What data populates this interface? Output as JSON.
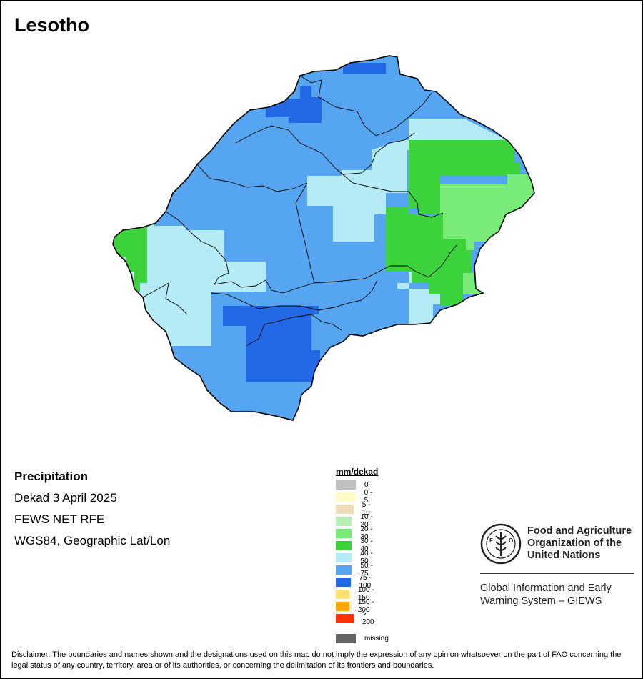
{
  "title": "Lesotho",
  "info": {
    "variable": "Precipitation",
    "period": "Dekad 3 April 2025",
    "source": "FEWS NET RFE",
    "projection": "WGS84, Geographic Lat/Lon"
  },
  "legend": {
    "title": "mm/dekad",
    "items": [
      {
        "label": "0",
        "color": "#c0c0c0"
      },
      {
        "label": "0 - 5",
        "color": "#fffcc8"
      },
      {
        "label": "5 - 10",
        "color": "#f0dcb9"
      },
      {
        "label": "10 - 20",
        "color": "#b4f0b4"
      },
      {
        "label": "20 - 30",
        "color": "#78eb78"
      },
      {
        "label": "30 - 40",
        "color": "#3cd23c"
      },
      {
        "label": "40 - 50",
        "color": "#b4ebf5"
      },
      {
        "label": "50 - 75",
        "color": "#55a5f0"
      },
      {
        "label": "75 - 100",
        "color": "#2369e6"
      },
      {
        "label": "100 - 150",
        "color": "#ffe178"
      },
      {
        "label": "150 - 200",
        "color": "#ffa500"
      },
      {
        "label": "> 200",
        "color": "#ff3200"
      },
      {
        "label": "missing",
        "color": "#646464"
      }
    ]
  },
  "org": {
    "logo_text": "FAO",
    "logo_motto": "FIAT PANIS",
    "name": "Food and Agriculture Organization of the United Nations",
    "system": "Global Information and Early Warning System – GIEWS"
  },
  "disclaimer": "Disclaimer: The boundaries and names shown and the designations used on this map do not imply the expression of any opinion whatsoever on the part of FAO concerning the legal status of any country, territory, area or of its authorities, or concerning the delimitation of its frontiers and boundaries."
}
